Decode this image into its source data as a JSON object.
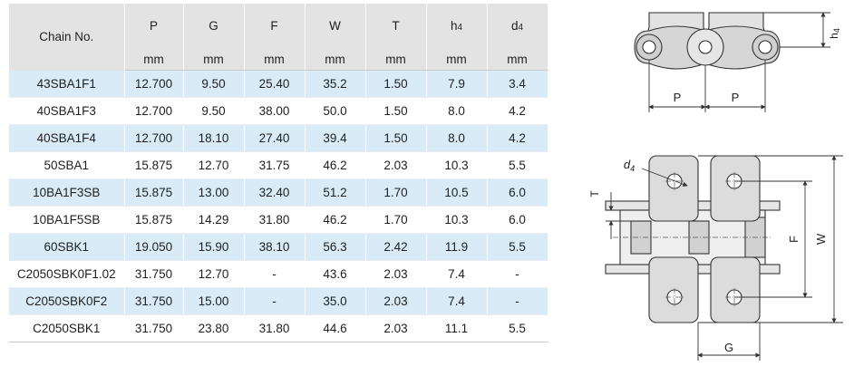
{
  "table": {
    "header_chain": "Chain No.",
    "columns": [
      {
        "key": "P",
        "label": "P",
        "sub": "",
        "unit": "mm"
      },
      {
        "key": "G",
        "label": "G",
        "sub": "",
        "unit": "mm"
      },
      {
        "key": "F",
        "label": "F",
        "sub": "",
        "unit": "mm"
      },
      {
        "key": "W",
        "label": "W",
        "sub": "",
        "unit": "mm"
      },
      {
        "key": "T",
        "label": "T",
        "sub": "",
        "unit": "mm"
      },
      {
        "key": "h4",
        "label": "h",
        "sub": "4",
        "unit": "mm"
      },
      {
        "key": "d4",
        "label": "d",
        "sub": "4",
        "unit": "mm"
      }
    ],
    "rows": [
      {
        "chain": "43SBA1F1",
        "vals": [
          "12.700",
          "9.50",
          "25.40",
          "35.2",
          "1.50",
          "7.9",
          "3.4"
        ]
      },
      {
        "chain": "40SBA1F3",
        "vals": [
          "12.700",
          "9.50",
          "38.00",
          "50.0",
          "1.50",
          "8.0",
          "4.2"
        ]
      },
      {
        "chain": "40SBA1F4",
        "vals": [
          "12.700",
          "18.10",
          "27.40",
          "39.4",
          "1.50",
          "8.0",
          "4.2"
        ]
      },
      {
        "chain": "50SBA1",
        "vals": [
          "15.875",
          "12.70",
          "31.75",
          "46.2",
          "2.03",
          "10.3",
          "5.5"
        ]
      },
      {
        "chain": "10BA1F3SB",
        "vals": [
          "15.875",
          "13.00",
          "32.40",
          "51.2",
          "1.70",
          "10.5",
          "6.0"
        ]
      },
      {
        "chain": "10BA1F5SB",
        "vals": [
          "15.875",
          "14.29",
          "31.80",
          "46.2",
          "1.70",
          "10.3",
          "6.0"
        ]
      },
      {
        "chain": "60SBK1",
        "vals": [
          "19.050",
          "15.90",
          "38.10",
          "56.3",
          "2.42",
          "11.9",
          "5.5"
        ]
      },
      {
        "chain": "C2050SBK0F1.02",
        "vals": [
          "31.750",
          "12.70",
          "-",
          "43.6",
          "2.03",
          "7.4",
          "-"
        ]
      },
      {
        "chain": "C2050SBK0F2",
        "vals": [
          "31.750",
          "15.00",
          "-",
          "35.0",
          "2.03",
          "7.4",
          "-"
        ]
      },
      {
        "chain": "C2050SBK1",
        "vals": [
          "31.750",
          "23.80",
          "31.80",
          "44.6",
          "2.03",
          "11.1",
          "5.5"
        ]
      }
    ]
  },
  "diagram_side": {
    "label_p1": "P",
    "label_p2": "P",
    "label_h": "h",
    "label_h_sub": "4"
  },
  "diagram_top": {
    "label_d": "d",
    "label_d_sub": "4",
    "label_t": "T",
    "label_f": "F",
    "label_w": "W",
    "label_g": "G"
  },
  "colors": {
    "row_blue": "#d8ebf6",
    "header_gray": "#e3e3e3",
    "plate_fill": "#dcdcdc",
    "line": "#333333"
  }
}
